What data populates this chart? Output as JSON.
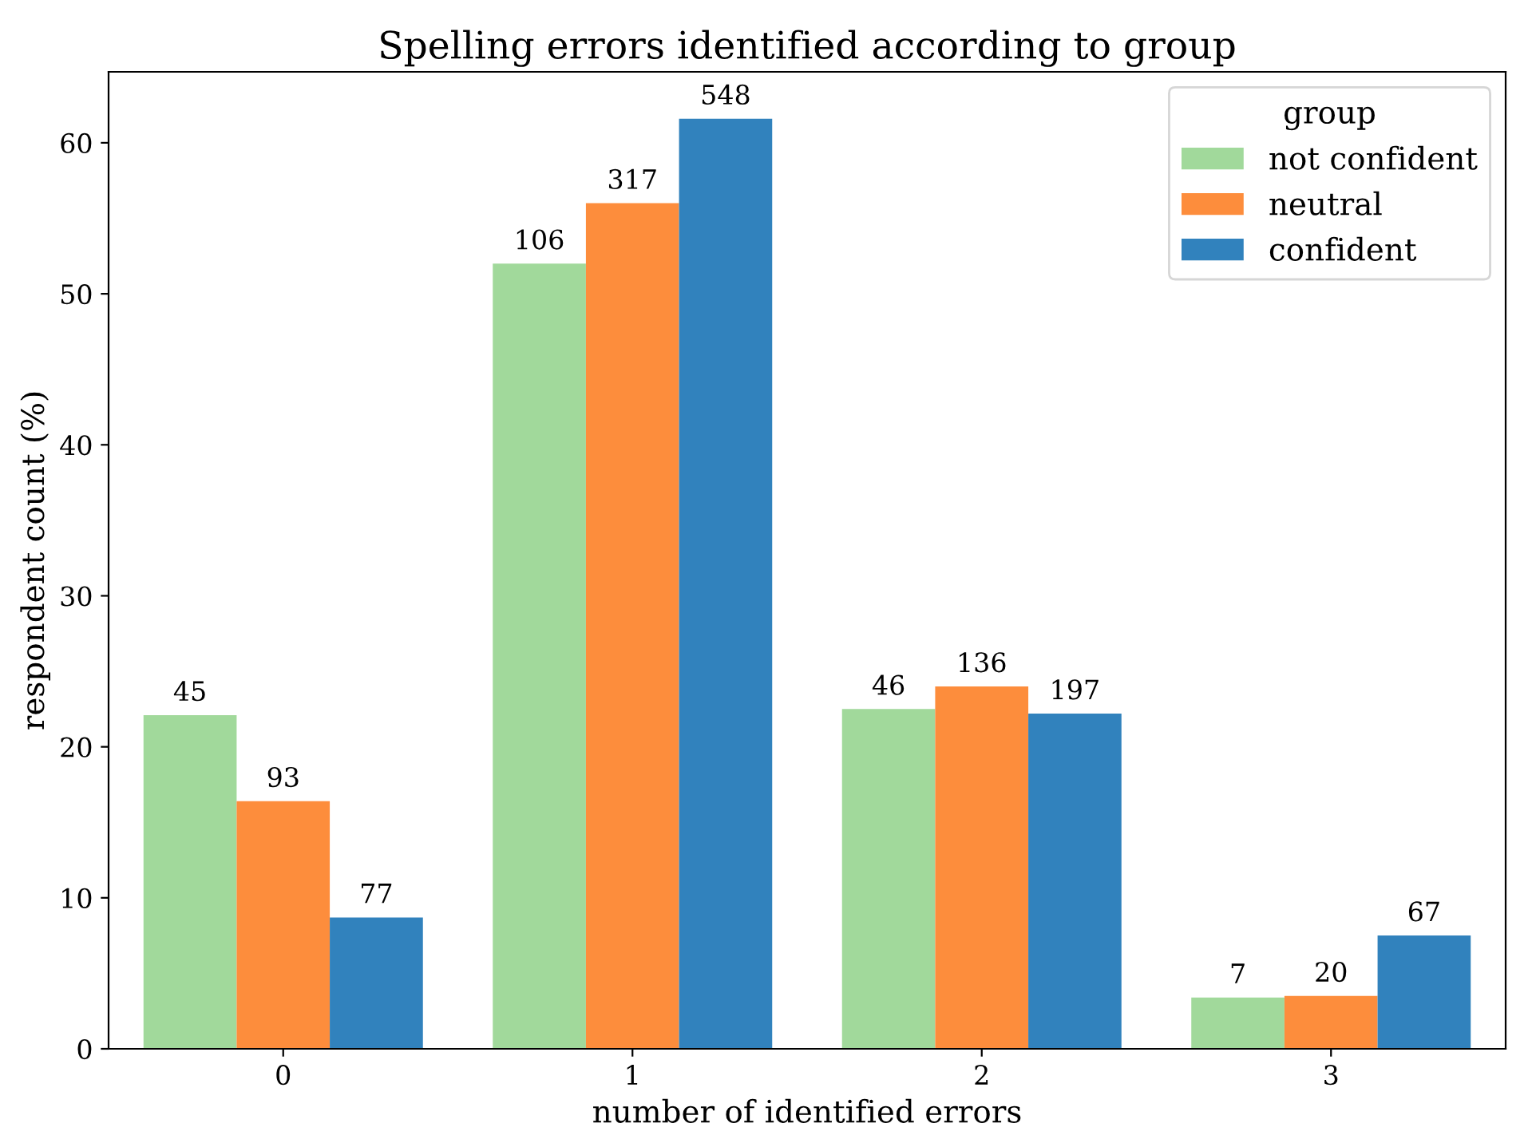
{
  "chart_data": {
    "type": "bar",
    "title": "Spelling errors identified according to group",
    "xlabel": "number of identified errors",
    "ylabel": "respondent count (%)",
    "legend_title": "group",
    "legend": "top right",
    "grid": false,
    "categories": [
      "0",
      "1",
      "2",
      "3"
    ],
    "series": [
      {
        "name": "not confident",
        "color": "#a1d99b",
        "values": [
          22.1,
          52.0,
          22.5,
          3.4
        ]
      },
      {
        "name": "neutral",
        "color": "#fd8d3c",
        "values": [
          16.4,
          56.0,
          24.0,
          3.5
        ]
      },
      {
        "name": "confident",
        "color": "#3182bd",
        "values": [
          8.7,
          61.6,
          22.2,
          7.5
        ]
      }
    ],
    "annotations": [
      "45",
      "106",
      "46",
      "7",
      "93",
      "317",
      "136",
      "20",
      "77",
      "548",
      "197",
      "67"
    ],
    "ylim": [
      0,
      64.7
    ],
    "yticks": [
      0,
      10,
      20,
      30,
      40,
      50,
      60
    ]
  }
}
